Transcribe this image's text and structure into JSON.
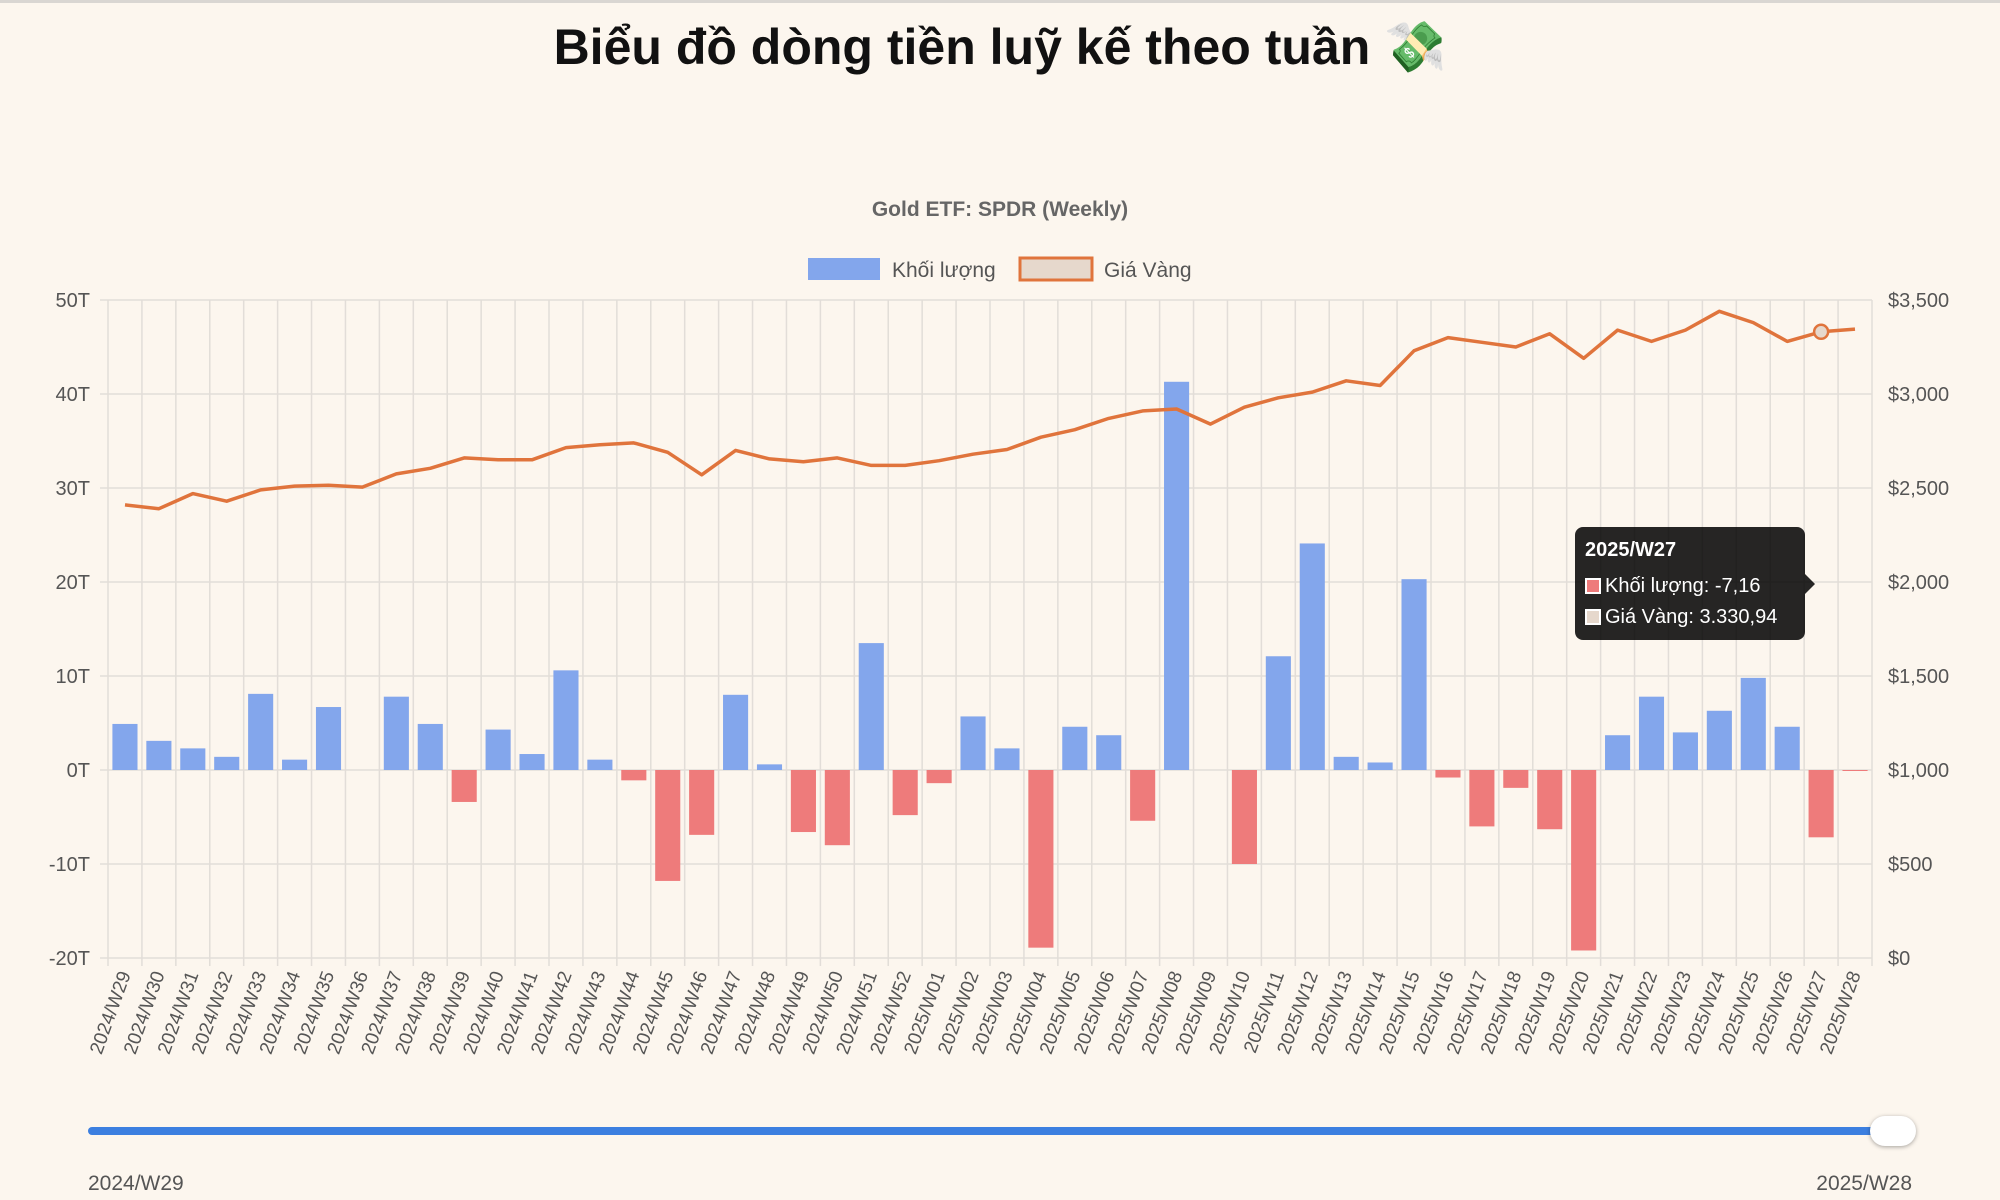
{
  "page_title": "Biểu đồ dòng tiền luỹ kế theo tuần 💸",
  "slider": {
    "start_label": "2024/W29",
    "end_label": "2025/W28",
    "position": 1.0
  },
  "tooltip": {
    "title": "2025/W27",
    "row1": "Khối lượng: -7,16",
    "row2": "Giá Vàng: 3.330,94"
  },
  "colors": {
    "positive_bar": "#83a6ec",
    "negative_bar": "#ee7b7b",
    "line": "#e0743c",
    "grid": "#e2ddd8",
    "background": "#fcf6ee"
  },
  "chart_data": {
    "type": "bar",
    "title": "Gold ETF: SPDR (Weekly)",
    "legend": [
      "Khối lượng",
      "Giá Vàng"
    ],
    "legend_position": "top",
    "grid": true,
    "categories": [
      "2024/W29",
      "2024/W30",
      "2024/W31",
      "2024/W32",
      "2024/W33",
      "2024/W34",
      "2024/W35",
      "2024/W36",
      "2024/W37",
      "2024/W38",
      "2024/W39",
      "2024/W40",
      "2024/W41",
      "2024/W42",
      "2024/W43",
      "2024/W44",
      "2024/W45",
      "2024/W46",
      "2024/W47",
      "2024/W48",
      "2024/W49",
      "2024/W50",
      "2024/W51",
      "2024/W52",
      "2025/W01",
      "2025/W02",
      "2025/W03",
      "2025/W04",
      "2025/W05",
      "2025/W06",
      "2025/W07",
      "2025/W08",
      "2025/W09",
      "2025/W10",
      "2025/W11",
      "2025/W12",
      "2025/W13",
      "2025/W14",
      "2025/W15",
      "2025/W16",
      "2025/W17",
      "2025/W18",
      "2025/W19",
      "2025/W20",
      "2025/W21",
      "2025/W22",
      "2025/W23",
      "2025/W24",
      "2025/W25",
      "2025/W26",
      "2025/W27",
      "2025/W28"
    ],
    "y_left": {
      "ylim": [
        -20,
        50
      ],
      "ticks": [
        "-20T",
        "-10T",
        "0T",
        "10T",
        "20T",
        "30T",
        "40T",
        "50T"
      ]
    },
    "y_right": {
      "ylim": [
        0,
        3500
      ],
      "ticks": [
        "$0",
        "$500",
        "$1,000",
        "$1,500",
        "$2,000",
        "$2,500",
        "$3,000",
        "$3,500"
      ]
    },
    "series": [
      {
        "name": "Khối lượng",
        "type": "bar",
        "axis": "left",
        "values": [
          4.9,
          3.1,
          2.3,
          1.4,
          8.1,
          1.1,
          6.7,
          0.0,
          7.8,
          4.9,
          -3.4,
          4.3,
          1.7,
          10.6,
          1.1,
          -1.1,
          -11.8,
          -6.9,
          8.0,
          0.6,
          -6.6,
          -8.0,
          13.5,
          -4.8,
          -1.4,
          5.7,
          2.3,
          -18.9,
          4.6,
          3.7,
          -5.4,
          41.3,
          0.0,
          -10.0,
          12.1,
          24.1,
          1.4,
          0.8,
          20.3,
          -0.8,
          -6.0,
          -1.9,
          -6.3,
          -19.2,
          3.7,
          7.8,
          4.0,
          6.3,
          9.8,
          4.6,
          -7.16,
          -0.05
        ]
      },
      {
        "name": "Giá Vàng",
        "type": "line",
        "axis": "right",
        "values": [
          2410,
          2390,
          2470,
          2430,
          2490,
          2510,
          2515,
          2505,
          2575,
          2605,
          2660,
          2650,
          2650,
          2715,
          2730,
          2740,
          2690,
          2570,
          2700,
          2655,
          2640,
          2660,
          2620,
          2620,
          2645,
          2680,
          2705,
          2770,
          2810,
          2870,
          2910,
          2920,
          2840,
          2930,
          2980,
          3010,
          3070,
          3045,
          3230,
          3300,
          3275,
          3250,
          3320,
          3190,
          3340,
          3280,
          3340,
          3440,
          3380,
          3280,
          3330.94,
          3345
        ]
      }
    ]
  }
}
